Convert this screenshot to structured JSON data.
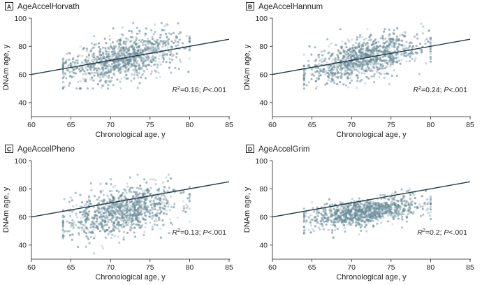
{
  "colors": {
    "points": "#6a8c99",
    "fit_line": "#1f3a46",
    "axis": "#231f20"
  },
  "chart_data": [
    {
      "type": "scatter",
      "panel": "A",
      "title": "AgeAccelHorvath",
      "xlabel": "Chronological age, y",
      "ylabel": "DNAm age, y",
      "xlim": [
        60,
        85
      ],
      "ylim": [
        30,
        100
      ],
      "xticks": [
        60,
        65,
        70,
        75,
        80,
        85
      ],
      "yticks": [
        40,
        60,
        80,
        100
      ],
      "fit": {
        "x": [
          60,
          85
        ],
        "y": [
          60,
          85
        ]
      },
      "annotation": {
        "r2_symbol": "R",
        "r2_sup": "2",
        "r2_value": "=0.16; ",
        "p_symbol": "P",
        "p_value": "<.001"
      },
      "points": {
        "n": 1000,
        "x_mean": 71.5,
        "x_sd": 3.6,
        "x_range": [
          64,
          80
        ],
        "y_intercept": -12.0,
        "y_slope": 1.17,
        "y_sd": 7.5,
        "y_range": [
          50,
          99
        ],
        "seed": 11
      }
    },
    {
      "type": "scatter",
      "panel": "B",
      "title": "AgeAccelHannum",
      "xlabel": "Chronological age, y",
      "ylabel": "DNAm age, y",
      "xlim": [
        60,
        85
      ],
      "ylim": [
        30,
        100
      ],
      "xticks": [
        60,
        65,
        70,
        75,
        80,
        85
      ],
      "yticks": [
        40,
        60,
        80,
        100
      ],
      "fit": {
        "x": [
          60,
          85
        ],
        "y": [
          60,
          85
        ]
      },
      "annotation": {
        "r2_symbol": "R",
        "r2_sup": "2",
        "r2_value": "=0.24; ",
        "p_symbol": "P",
        "p_value": "<.001"
      },
      "points": {
        "n": 1000,
        "x_mean": 71.5,
        "x_sd": 3.6,
        "x_range": [
          64,
          80
        ],
        "y_intercept": -16.0,
        "y_slope": 1.22,
        "y_sd": 6.5,
        "y_range": [
          50,
          96
        ],
        "seed": 23
      }
    },
    {
      "type": "scatter",
      "panel": "C",
      "title": "AgeAccelPheno",
      "xlabel": "Chronological age, y",
      "ylabel": "DNAm age, y",
      "xlim": [
        60,
        85
      ],
      "ylim": [
        30,
        100
      ],
      "xticks": [
        60,
        65,
        70,
        75,
        80,
        85
      ],
      "yticks": [
        40,
        60,
        80,
        100
      ],
      "fit": {
        "x": [
          60,
          85
        ],
        "y": [
          60,
          85
        ]
      },
      "annotation": {
        "r2_symbol": "R",
        "r2_sup": "2",
        "r2_value": "=0.13; ",
        "p_symbol": "P",
        "p_value": "<.001"
      },
      "points": {
        "n": 1000,
        "x_mean": 71.5,
        "x_sd": 3.6,
        "x_range": [
          64,
          80
        ],
        "y_intercept": -20.0,
        "y_slope": 1.18,
        "y_sd": 8.5,
        "y_range": [
          34,
          90
        ],
        "seed": 37
      }
    },
    {
      "type": "scatter",
      "panel": "D",
      "title": "AgeAccelGrim",
      "xlabel": "Chronological age, y",
      "ylabel": "DNAm age, y",
      "xlim": [
        60,
        85
      ],
      "ylim": [
        30,
        100
      ],
      "xticks": [
        60,
        65,
        70,
        75,
        80,
        85
      ],
      "yticks": [
        40,
        60,
        80,
        100
      ],
      "fit": {
        "x": [
          60,
          85
        ],
        "y": [
          60,
          85
        ]
      },
      "annotation": {
        "r2_symbol": "R",
        "r2_sup": "2",
        "r2_value": "=0.2; ",
        "p_symbol": "P",
        "p_value": "<.001"
      },
      "points": {
        "n": 1000,
        "x_mean": 71.5,
        "x_sd": 3.6,
        "x_range": [
          64,
          80
        ],
        "y_intercept": 12.0,
        "y_slope": 0.72,
        "y_sd": 4.5,
        "y_range": [
          42,
          80
        ],
        "seed": 53
      }
    }
  ]
}
